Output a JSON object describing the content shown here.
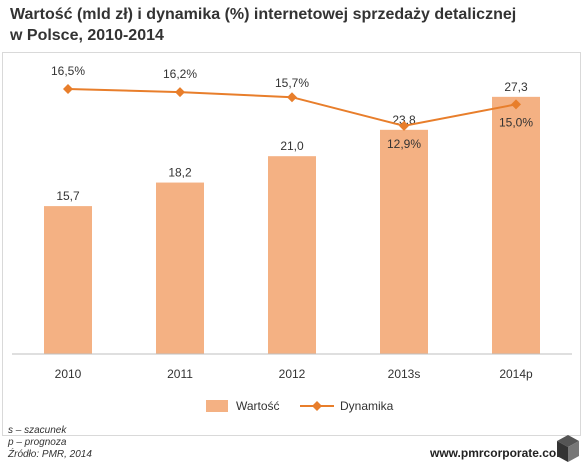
{
  "title_line1": "Wartość (mld zł) i dynamika (%) internetowej sprzedaży detalicznej",
  "title_line2": "w Polsce, 2010-2014",
  "notes": [
    "s – szacunek",
    "p – prognoza",
    "Źródło: PMR, 2014"
  ],
  "source_url": "www.pmrcorporate.com",
  "logo": "cube-logo-icon",
  "colors": {
    "bar": "#f4b183",
    "line": "#e87e2b",
    "text": "#333333"
  },
  "chart_data": {
    "type": "bar",
    "categories": [
      "2010",
      "2011",
      "2012",
      "2013s",
      "2014p"
    ],
    "series": [
      {
        "name": "Wartość",
        "type": "bar",
        "values": [
          15.7,
          18.2,
          21.0,
          23.8,
          27.3
        ],
        "labels": [
          "15,7",
          "18,2",
          "21,0",
          "23,8",
          "27,3"
        ]
      },
      {
        "name": "Dynamika",
        "type": "line",
        "values": [
          16.5,
          16.2,
          15.7,
          12.9,
          15.0
        ],
        "labels": [
          "16,5%",
          "16,2%",
          "15,7%",
          "12,9%",
          "15,0%"
        ]
      }
    ],
    "bar_ylim": [
      0,
      30
    ],
    "line_ylim": [
      0,
      20
    ],
    "legend_position": "bottom",
    "grid": false
  }
}
